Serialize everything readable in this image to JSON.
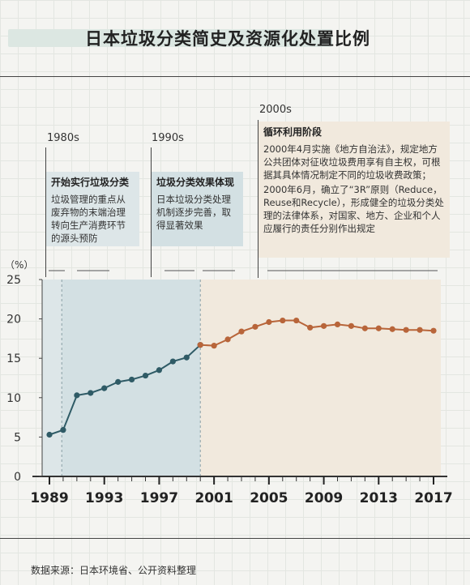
{
  "title": "日本垃圾分类简史及资源化处置比例",
  "eras": [
    {
      "period": "1980s",
      "heading": "开始实行垃圾分类",
      "paragraphs": [
        "垃圾管理的重点从废弃物的末端治理转向生产消费环节的源头预防"
      ],
      "color": "#dde6e8"
    },
    {
      "period": "1990s",
      "heading": "垃圾分类效果体现",
      "paragraphs": [
        "日本垃圾分类处理机制逐步完善，取得显著效果"
      ],
      "color": "#d3e0e3"
    },
    {
      "period": "2000s",
      "heading": "循环利用阶段",
      "paragraphs": [
        "2000年4月实施《地方自治法》，规定地方公共团体对征收垃圾费用享有自主权，可根据其具体情况制定不同的垃圾收费政策；",
        "2000年6月，确立了“3R”原则（Reduce，Reuse和Recycle），形成健全的垃圾分类处理的法律体系，对国家、地方、企业和个人应履行的责任分别作出规定"
      ],
      "color": "#f1e9dd"
    }
  ],
  "source": "数据来源：日本环境省、公开资料整理",
  "chart_data": {
    "type": "line",
    "ylabel": "（%）",
    "ylim": [
      0,
      25
    ],
    "yticks": [
      0,
      5,
      10,
      15,
      20,
      25
    ],
    "xlim": [
      1989,
      2017
    ],
    "xticks": [
      1989,
      1993,
      1997,
      2001,
      2005,
      2009,
      2013,
      2017
    ],
    "grid": false,
    "series": [
      {
        "color": "#2f5b66",
        "x": [
          1989,
          1990,
          1991,
          1992,
          1993,
          1994,
          1995,
          1996,
          1997,
          1998,
          1999,
          2000
        ],
        "values": [
          5.3,
          5.9,
          10.3,
          10.6,
          11.2,
          12.0,
          12.3,
          12.8,
          13.5,
          14.6,
          15.1,
          16.7
        ]
      },
      {
        "color": "#b8653a",
        "x": [
          2000,
          2001,
          2002,
          2003,
          2004,
          2005,
          2006,
          2007,
          2008,
          2009,
          2010,
          2011,
          2012,
          2013,
          2014,
          2015,
          2016,
          2017
        ],
        "values": [
          16.7,
          16.6,
          17.4,
          18.4,
          19.0,
          19.6,
          19.8,
          19.8,
          18.9,
          19.1,
          19.3,
          19.1,
          18.8,
          18.8,
          18.7,
          18.6,
          18.6,
          18.5
        ]
      }
    ]
  }
}
